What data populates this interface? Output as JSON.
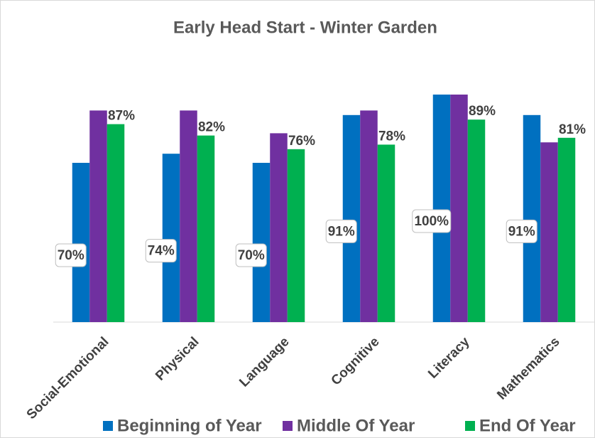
{
  "chart_data": {
    "type": "bar",
    "title": "Early Head Start - Winter Garden",
    "categories": [
      "Social-Emotional",
      "Physical",
      "Language",
      "Cognitive",
      "Literacy",
      "Mathematics"
    ],
    "ylim": [
      0,
      100
    ],
    "series": [
      {
        "name": "Beginning of Year",
        "color": "#0070c0",
        "values": [
          70,
          74,
          70,
          91,
          100,
          91
        ],
        "value_labels": [
          "70%",
          "74%",
          "70%",
          "91%",
          "100%",
          "91%"
        ]
      },
      {
        "name": "Middle Of Year",
        "color": "#7030a0",
        "values": [
          93,
          93,
          83,
          93,
          100,
          79
        ]
      },
      {
        "name": "End Of Year",
        "color": "#00b050",
        "values": [
          87,
          82,
          76,
          78,
          89,
          81
        ],
        "value_labels": [
          "87%",
          "82%",
          "76%",
          "78%",
          "89%",
          "81%"
        ]
      }
    ]
  }
}
